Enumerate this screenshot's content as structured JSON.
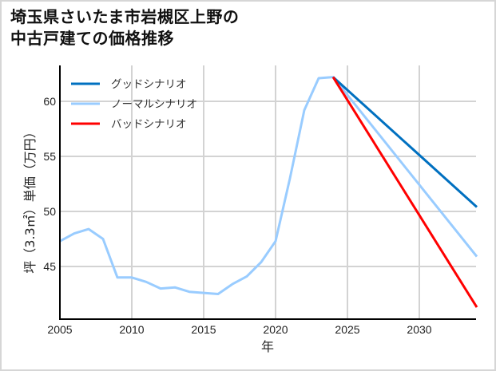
{
  "title_line1": "埼玉県さいたま市岩槻区上野の",
  "title_line2": "中古戸建ての価格推移",
  "chart_data": {
    "type": "line",
    "title": "埼玉県さいたま市岩槻区上野の中古戸建ての価格推移",
    "xlabel": "年",
    "ylabel": "坪（3.3㎡）単価（万円）",
    "xlim": [
      2005,
      2034
    ],
    "ylim": [
      40.2,
      63.2
    ],
    "xticks": [
      2005,
      2010,
      2015,
      2020,
      2025,
      2030
    ],
    "yticks": [
      45,
      50,
      55,
      60
    ],
    "grid": true,
    "legend_position": "upper left",
    "series": [
      {
        "name": "ノーマルシナリオ",
        "color": "#99ccff",
        "x": [
          2005,
          2006,
          2007,
          2008,
          2009,
          2010,
          2011,
          2012,
          2013,
          2014,
          2015,
          2016,
          2017,
          2018,
          2019,
          2020,
          2021,
          2022,
          2023,
          2024,
          2034
        ],
        "values": [
          47.3,
          48.0,
          48.4,
          47.5,
          44.0,
          44.0,
          43.6,
          43.0,
          43.1,
          42.7,
          42.6,
          42.5,
          43.4,
          44.1,
          45.4,
          47.3,
          53.0,
          59.2,
          62.1,
          62.2,
          45.9
        ]
      },
      {
        "name": "グッドシナリオ",
        "color": "#0070c0",
        "x": [
          2024,
          2034
        ],
        "values": [
          62.2,
          50.4
        ]
      },
      {
        "name": "バッドシナリオ",
        "color": "#ff0000",
        "x": [
          2024,
          2034
        ],
        "values": [
          62.2,
          41.3
        ]
      }
    ],
    "legend": [
      {
        "name": "グッドシナリオ",
        "color": "#0070c0"
      },
      {
        "name": "ノーマルシナリオ",
        "color": "#99ccff"
      },
      {
        "name": "バッドシナリオ",
        "color": "#ff0000"
      }
    ]
  }
}
